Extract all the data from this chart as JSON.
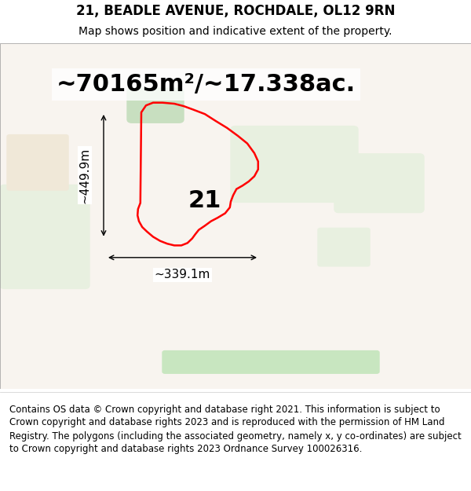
{
  "title_line1": "21, BEADLE AVENUE, ROCHDALE, OL12 9RN",
  "title_line2": "Map shows position and indicative extent of the property.",
  "area_text": "~70165m²/~17.338ac.",
  "dim_height": "~449.9m",
  "dim_width": "~339.1m",
  "label_number": "21",
  "footer_text": "Contains OS data © Crown copyright and database right 2021. This information is subject to Crown copyright and database rights 2023 and is reproduced with the permission of HM Land Registry. The polygons (including the associated geometry, namely x, y co-ordinates) are subject to Crown copyright and database rights 2023 Ordnance Survey 100026316.",
  "title_fontsize": 12,
  "subtitle_fontsize": 10,
  "area_fontsize": 22,
  "dim_fontsize": 11,
  "label_fontsize": 22,
  "footer_fontsize": 8.5,
  "title_color": "#000000",
  "area_color": "#000000",
  "dim_color": "#000000",
  "label_color": "#000000",
  "footer_color": "#000000",
  "map_bg_color": "#f5f0eb",
  "fig_width": 6.0,
  "fig_height": 6.25,
  "dpi": 100
}
